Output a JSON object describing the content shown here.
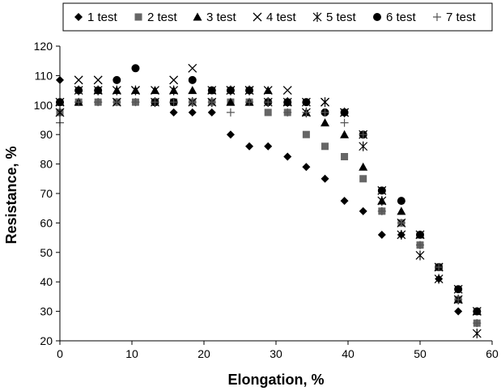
{
  "chart_data": {
    "type": "scatter",
    "title": "",
    "xlabel": "Elongation, %",
    "ylabel": "Resistance, %",
    "xlim": [
      0,
      60
    ],
    "ylim": [
      20,
      120
    ],
    "xticks": [
      "0",
      "10",
      "20",
      "30",
      "40",
      "50",
      "60"
    ],
    "yticks": [
      "20",
      "30",
      "40",
      "50",
      "60",
      "70",
      "80",
      "90",
      "100",
      "110",
      "120"
    ],
    "grid": false,
    "legend_position": "top",
    "series": [
      {
        "name": "1 test",
        "marker": "diamond",
        "color": "#000000",
        "points": [
          [
            0,
            108.5
          ],
          [
            2.6,
            101
          ],
          [
            5.3,
            101
          ],
          [
            7.9,
            101
          ],
          [
            10.5,
            101
          ],
          [
            13.2,
            101
          ],
          [
            15.8,
            97.5
          ],
          [
            18.4,
            97.5
          ],
          [
            21.1,
            97.5
          ],
          [
            23.7,
            90
          ],
          [
            26.3,
            86
          ],
          [
            28.9,
            86
          ],
          [
            31.6,
            82.5
          ],
          [
            34.2,
            79
          ],
          [
            36.8,
            75
          ],
          [
            39.5,
            67.5
          ],
          [
            42.1,
            64
          ],
          [
            44.7,
            56
          ],
          [
            47.4,
            56
          ],
          [
            50,
            52.5
          ],
          [
            52.6,
            41
          ],
          [
            55.3,
            30
          ],
          [
            57.9,
            30
          ]
        ]
      },
      {
        "name": "2 test",
        "marker": "square",
        "color": "#666666",
        "points": [
          [
            0,
            97.5
          ],
          [
            2.6,
            101
          ],
          [
            5.3,
            101
          ],
          [
            7.9,
            101
          ],
          [
            10.5,
            101
          ],
          [
            13.2,
            101
          ],
          [
            15.8,
            101
          ],
          [
            18.4,
            101
          ],
          [
            21.1,
            101
          ],
          [
            23.7,
            101
          ],
          [
            26.3,
            101
          ],
          [
            28.9,
            97.5
          ],
          [
            31.6,
            97.5
          ],
          [
            34.2,
            90
          ],
          [
            36.8,
            86
          ],
          [
            39.5,
            82.5
          ],
          [
            42.1,
            75
          ],
          [
            44.7,
            64
          ],
          [
            47.4,
            60
          ],
          [
            50,
            52.5
          ],
          [
            52.6,
            45
          ],
          [
            55.3,
            34
          ],
          [
            57.9,
            26
          ]
        ]
      },
      {
        "name": "3 test",
        "marker": "triangle",
        "color": "#000000",
        "points": [
          [
            0,
            101
          ],
          [
            2.6,
            101
          ],
          [
            5.3,
            105
          ],
          [
            7.9,
            105
          ],
          [
            10.5,
            105
          ],
          [
            13.2,
            105
          ],
          [
            15.8,
            105
          ],
          [
            18.4,
            105
          ],
          [
            21.1,
            105
          ],
          [
            23.7,
            101
          ],
          [
            26.3,
            101
          ],
          [
            28.9,
            105
          ],
          [
            31.6,
            101
          ],
          [
            34.2,
            97.5
          ],
          [
            36.8,
            94
          ],
          [
            39.5,
            90
          ],
          [
            42.1,
            79
          ],
          [
            44.7,
            67.5
          ],
          [
            47.4,
            64
          ],
          [
            50,
            56
          ],
          [
            52.6,
            45
          ],
          [
            55.3,
            34
          ],
          [
            57.9,
            30
          ]
        ]
      },
      {
        "name": "4 test",
        "marker": "x",
        "color": "#000000",
        "points": [
          [
            0,
            101
          ],
          [
            2.6,
            108.5
          ],
          [
            5.3,
            108.5
          ],
          [
            7.9,
            101
          ],
          [
            10.5,
            105
          ],
          [
            13.2,
            105
          ],
          [
            15.8,
            108.5
          ],
          [
            18.4,
            112.5
          ],
          [
            21.1,
            105
          ],
          [
            23.7,
            105
          ],
          [
            26.3,
            105
          ],
          [
            28.9,
            105
          ],
          [
            31.6,
            105
          ],
          [
            34.2,
            101
          ],
          [
            36.8,
            101
          ],
          [
            39.5,
            97.5
          ],
          [
            42.1,
            90
          ],
          [
            44.7,
            71
          ],
          [
            47.4,
            60
          ],
          [
            50,
            56
          ],
          [
            52.6,
            45
          ],
          [
            55.3,
            37.5
          ],
          [
            57.9,
            30
          ]
        ]
      },
      {
        "name": "5 test",
        "marker": "asterisk",
        "color": "#000000",
        "points": [
          [
            0,
            97.5
          ],
          [
            2.6,
            105
          ],
          [
            5.3,
            105
          ],
          [
            7.9,
            105
          ],
          [
            10.5,
            105
          ],
          [
            13.2,
            101
          ],
          [
            15.8,
            105
          ],
          [
            18.4,
            101
          ],
          [
            21.1,
            101
          ],
          [
            23.7,
            105
          ],
          [
            26.3,
            105
          ],
          [
            28.9,
            101
          ],
          [
            31.6,
            101
          ],
          [
            34.2,
            97.5
          ],
          [
            36.8,
            101
          ],
          [
            39.5,
            97.5
          ],
          [
            42.1,
            86
          ],
          [
            44.7,
            67.5
          ],
          [
            47.4,
            56
          ],
          [
            50,
            49
          ],
          [
            52.6,
            41
          ],
          [
            55.3,
            34
          ],
          [
            57.9,
            22.5
          ]
        ]
      },
      {
        "name": "6 test",
        "marker": "circle",
        "color": "#000000",
        "points": [
          [
            0,
            101
          ],
          [
            2.6,
            105
          ],
          [
            5.3,
            105
          ],
          [
            7.9,
            108.5
          ],
          [
            10.5,
            112.5
          ],
          [
            13.2,
            101
          ],
          [
            15.8,
            101
          ],
          [
            18.4,
            108.5
          ],
          [
            21.1,
            105
          ],
          [
            23.7,
            105
          ],
          [
            26.3,
            105
          ],
          [
            28.9,
            101
          ],
          [
            31.6,
            101
          ],
          [
            34.2,
            101
          ],
          [
            36.8,
            97.5
          ],
          [
            39.5,
            97.5
          ],
          [
            42.1,
            90
          ],
          [
            44.7,
            71
          ],
          [
            47.4,
            67.5
          ],
          [
            50,
            56
          ],
          [
            52.6,
            45
          ],
          [
            55.3,
            37.5
          ],
          [
            57.9,
            30
          ]
        ]
      },
      {
        "name": "7 test",
        "marker": "plus",
        "color": "#555555",
        "points": [
          [
            0,
            94
          ],
          [
            2.6,
            101
          ],
          [
            5.3,
            101
          ],
          [
            7.9,
            101
          ],
          [
            10.5,
            101
          ],
          [
            13.2,
            101
          ],
          [
            15.8,
            101
          ],
          [
            18.4,
            101
          ],
          [
            21.1,
            101
          ],
          [
            23.7,
            97.5
          ],
          [
            26.3,
            101
          ],
          [
            28.9,
            101
          ],
          [
            31.6,
            97.5
          ],
          [
            34.2,
            97.5
          ],
          [
            36.8,
            97.5
          ],
          [
            39.5,
            94
          ],
          [
            42.1,
            90
          ],
          [
            44.7,
            64
          ],
          [
            47.4,
            60
          ],
          [
            50,
            52.5
          ],
          [
            52.6,
            45
          ],
          [
            55.3,
            34
          ],
          [
            57.9,
            26
          ]
        ]
      }
    ]
  }
}
